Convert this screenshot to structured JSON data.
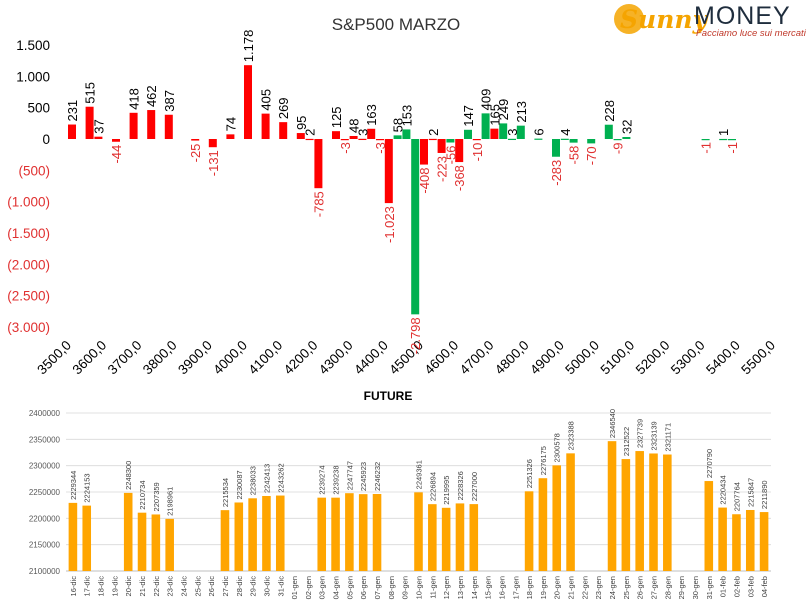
{
  "logo": {
    "sunny": "Sunny",
    "money": "MONEY",
    "tagline": "Facciamo luce sui mercati"
  },
  "chart_data": [
    {
      "type": "bar",
      "title": "S&P500 MARZO",
      "xlim": [
        3500,
        5500
      ],
      "xticks": [
        "3500,0",
        "3600,0",
        "3700,0",
        "3800,0",
        "3900,0",
        "4000,0",
        "4100,0",
        "4200,0",
        "4300,0",
        "4400,0",
        "4500,0",
        "4600,0",
        "4700,0",
        "4800,0",
        "4900,0",
        "5000,0",
        "5100,0",
        "5200,0",
        "5300,0",
        "5400,0",
        "5500,0"
      ],
      "ylim": [
        -3000,
        1500
      ],
      "yticks": [
        {
          "value": 1500,
          "label": "1.500"
        },
        {
          "value": 1000,
          "label": "1.000"
        },
        {
          "value": 500,
          "label": "500"
        },
        {
          "value": 0,
          "label": "0"
        },
        {
          "value": -500,
          "label": "(500)"
        },
        {
          "value": -1000,
          "label": "(1.000)"
        },
        {
          "value": -1500,
          "label": "(1.500)"
        },
        {
          "value": -2000,
          "label": "(2.000)"
        },
        {
          "value": -2500,
          "label": "(2.500)"
        },
        {
          "value": -3000,
          "label": "(3.000)"
        }
      ],
      "colors": {
        "red": "#ff0000",
        "green": "#00b050",
        "neg_label": "#e03030"
      },
      "bars": [
        {
          "x": 3500,
          "value": 231,
          "color": "red",
          "label": "231"
        },
        {
          "x": 3550,
          "value": 515,
          "color": "red",
          "label": "515"
        },
        {
          "x": 3575,
          "value": 37,
          "color": "red",
          "label": "37"
        },
        {
          "x": 3625,
          "value": -44,
          "color": "red",
          "label": "-44"
        },
        {
          "x": 3675,
          "value": 418,
          "color": "red",
          "label": "418"
        },
        {
          "x": 3725,
          "value": 462,
          "color": "red",
          "label": "462"
        },
        {
          "x": 3775,
          "value": 387,
          "color": "red",
          "label": "387"
        },
        {
          "x": 3850,
          "value": -25,
          "color": "red",
          "label": "-25"
        },
        {
          "x": 3900,
          "value": -131,
          "color": "red",
          "label": "-131"
        },
        {
          "x": 3950,
          "value": 74,
          "color": "red",
          "label": "74"
        },
        {
          "x": 4000,
          "value": 1178,
          "color": "red",
          "label": "1.178"
        },
        {
          "x": 4050,
          "value": 405,
          "color": "red",
          "label": "405"
        },
        {
          "x": 4100,
          "value": 269,
          "color": "red",
          "label": "269"
        },
        {
          "x": 4150,
          "value": 95,
          "color": "red",
          "label": "95"
        },
        {
          "x": 4175,
          "value": 2,
          "color": "red",
          "label": "2"
        },
        {
          "x": 4200,
          "value": -785,
          "color": "red",
          "label": "-785"
        },
        {
          "x": 4250,
          "value": 125,
          "color": "red",
          "label": "125"
        },
        {
          "x": 4275,
          "value": -3,
          "color": "red",
          "label": "-3"
        },
        {
          "x": 4300,
          "value": 48,
          "color": "red",
          "label": "48"
        },
        {
          "x": 4325,
          "value": 3,
          "color": "red",
          "label": "3"
        },
        {
          "x": 4350,
          "value": 163,
          "color": "red",
          "label": "163"
        },
        {
          "x": 4375,
          "value": -3,
          "color": "red",
          "label": "-3"
        },
        {
          "x": 4400,
          "value": -1023,
          "color": "red",
          "label": "-1.023"
        },
        {
          "x": 4425,
          "value": 58,
          "color": "green",
          "label": "58"
        },
        {
          "x": 4450,
          "value": 153,
          "color": "green",
          "label": "153"
        },
        {
          "x": 4475,
          "value": -2798,
          "color": "green",
          "label": "-2.798"
        },
        {
          "x": 4500,
          "value": -408,
          "color": "red",
          "label": "-408"
        },
        {
          "x": 4525,
          "value": 2,
          "color": "red",
          "label": "2"
        },
        {
          "x": 4550,
          "value": -223,
          "color": "red",
          "label": "-223"
        },
        {
          "x": 4575,
          "value": -56,
          "color": "green",
          "label": "-56"
        },
        {
          "x": 4600,
          "value": -368,
          "color": "red",
          "label": "-368"
        },
        {
          "x": 4625,
          "value": 147,
          "color": "green",
          "label": "147"
        },
        {
          "x": 4650,
          "value": -10,
          "color": "red",
          "label": "-10"
        },
        {
          "x": 4675,
          "value": 409,
          "color": "green",
          "label": "409"
        },
        {
          "x": 4700,
          "value": 165,
          "color": "red",
          "label": "165"
        },
        {
          "x": 4725,
          "value": 249,
          "color": "green",
          "label": "249"
        },
        {
          "x": 4750,
          "value": 3,
          "color": "green",
          "label": "3"
        },
        {
          "x": 4775,
          "value": 213,
          "color": "green",
          "label": "213"
        },
        {
          "x": 4825,
          "value": 6,
          "color": "green",
          "label": "6"
        },
        {
          "x": 4875,
          "value": -283,
          "color": "green",
          "label": "-283"
        },
        {
          "x": 4900,
          "value": 4,
          "color": "green",
          "label": "4"
        },
        {
          "x": 4925,
          "value": -58,
          "color": "green",
          "label": "-58"
        },
        {
          "x": 4975,
          "value": -70,
          "color": "green",
          "label": "-70"
        },
        {
          "x": 5025,
          "value": 228,
          "color": "green",
          "label": "228"
        },
        {
          "x": 5050,
          "value": -9,
          "color": "green",
          "label": "-9"
        },
        {
          "x": 5075,
          "value": 32,
          "color": "green",
          "label": "32"
        },
        {
          "x": 5300,
          "value": -1,
          "color": "green",
          "label": "-1"
        },
        {
          "x": 5350,
          "value": 1,
          "color": "green",
          "label": "1"
        },
        {
          "x": 5375,
          "value": -1,
          "color": "green",
          "label": "-1"
        }
      ]
    },
    {
      "type": "bar",
      "title": "FUTURE",
      "ylim": [
        2100000,
        2400000
      ],
      "yticks": [
        2100000,
        2150000,
        2200000,
        2250000,
        2300000,
        2350000,
        2400000
      ],
      "color": "#ffa500",
      "categories": [
        "16-dic",
        "17-dic",
        "18-dic",
        "19-dic",
        "20-dic",
        "21-dic",
        "22-dic",
        "23-dic",
        "24-dic",
        "25-dic",
        "26-dic",
        "27-dic",
        "28-dic",
        "29-dic",
        "30-dic",
        "31-dic",
        "01-gen",
        "02-gen",
        "03-gen",
        "04-gen",
        "05-gen",
        "06-gen",
        "07-gen",
        "08-gen",
        "09-gen",
        "10-gen",
        "11-gen",
        "12-gen",
        "13-gen",
        "14-gen",
        "15-gen",
        "16-gen",
        "17-gen",
        "18-gen",
        "19-gen",
        "20-gen",
        "21-gen",
        "22-gen",
        "23-gen",
        "24-gen",
        "25-gen",
        "26-gen",
        "27-gen",
        "28-gen",
        "29-gen",
        "30-gen",
        "31-gen",
        "01-feb",
        "02-feb",
        "03-feb",
        "04-feb"
      ],
      "values": [
        2229344,
        2224153,
        null,
        null,
        2248300,
        2210734,
        2207359,
        2198961,
        null,
        null,
        null,
        2215534,
        2230087,
        2238033,
        2242413,
        2243262,
        null,
        null,
        2239274,
        2239238,
        2247747,
        2245923,
        2246232,
        null,
        null,
        2249361,
        2226894,
        2219995,
        2228326,
        2227000,
        null,
        null,
        null,
        2251326,
        2276175,
        2300578,
        2323388,
        null,
        null,
        2346540,
        2312522,
        2327739,
        2323139,
        2321171,
        null,
        null,
        2270790,
        2220434,
        2207764,
        2215847,
        2211890
      ]
    }
  ]
}
